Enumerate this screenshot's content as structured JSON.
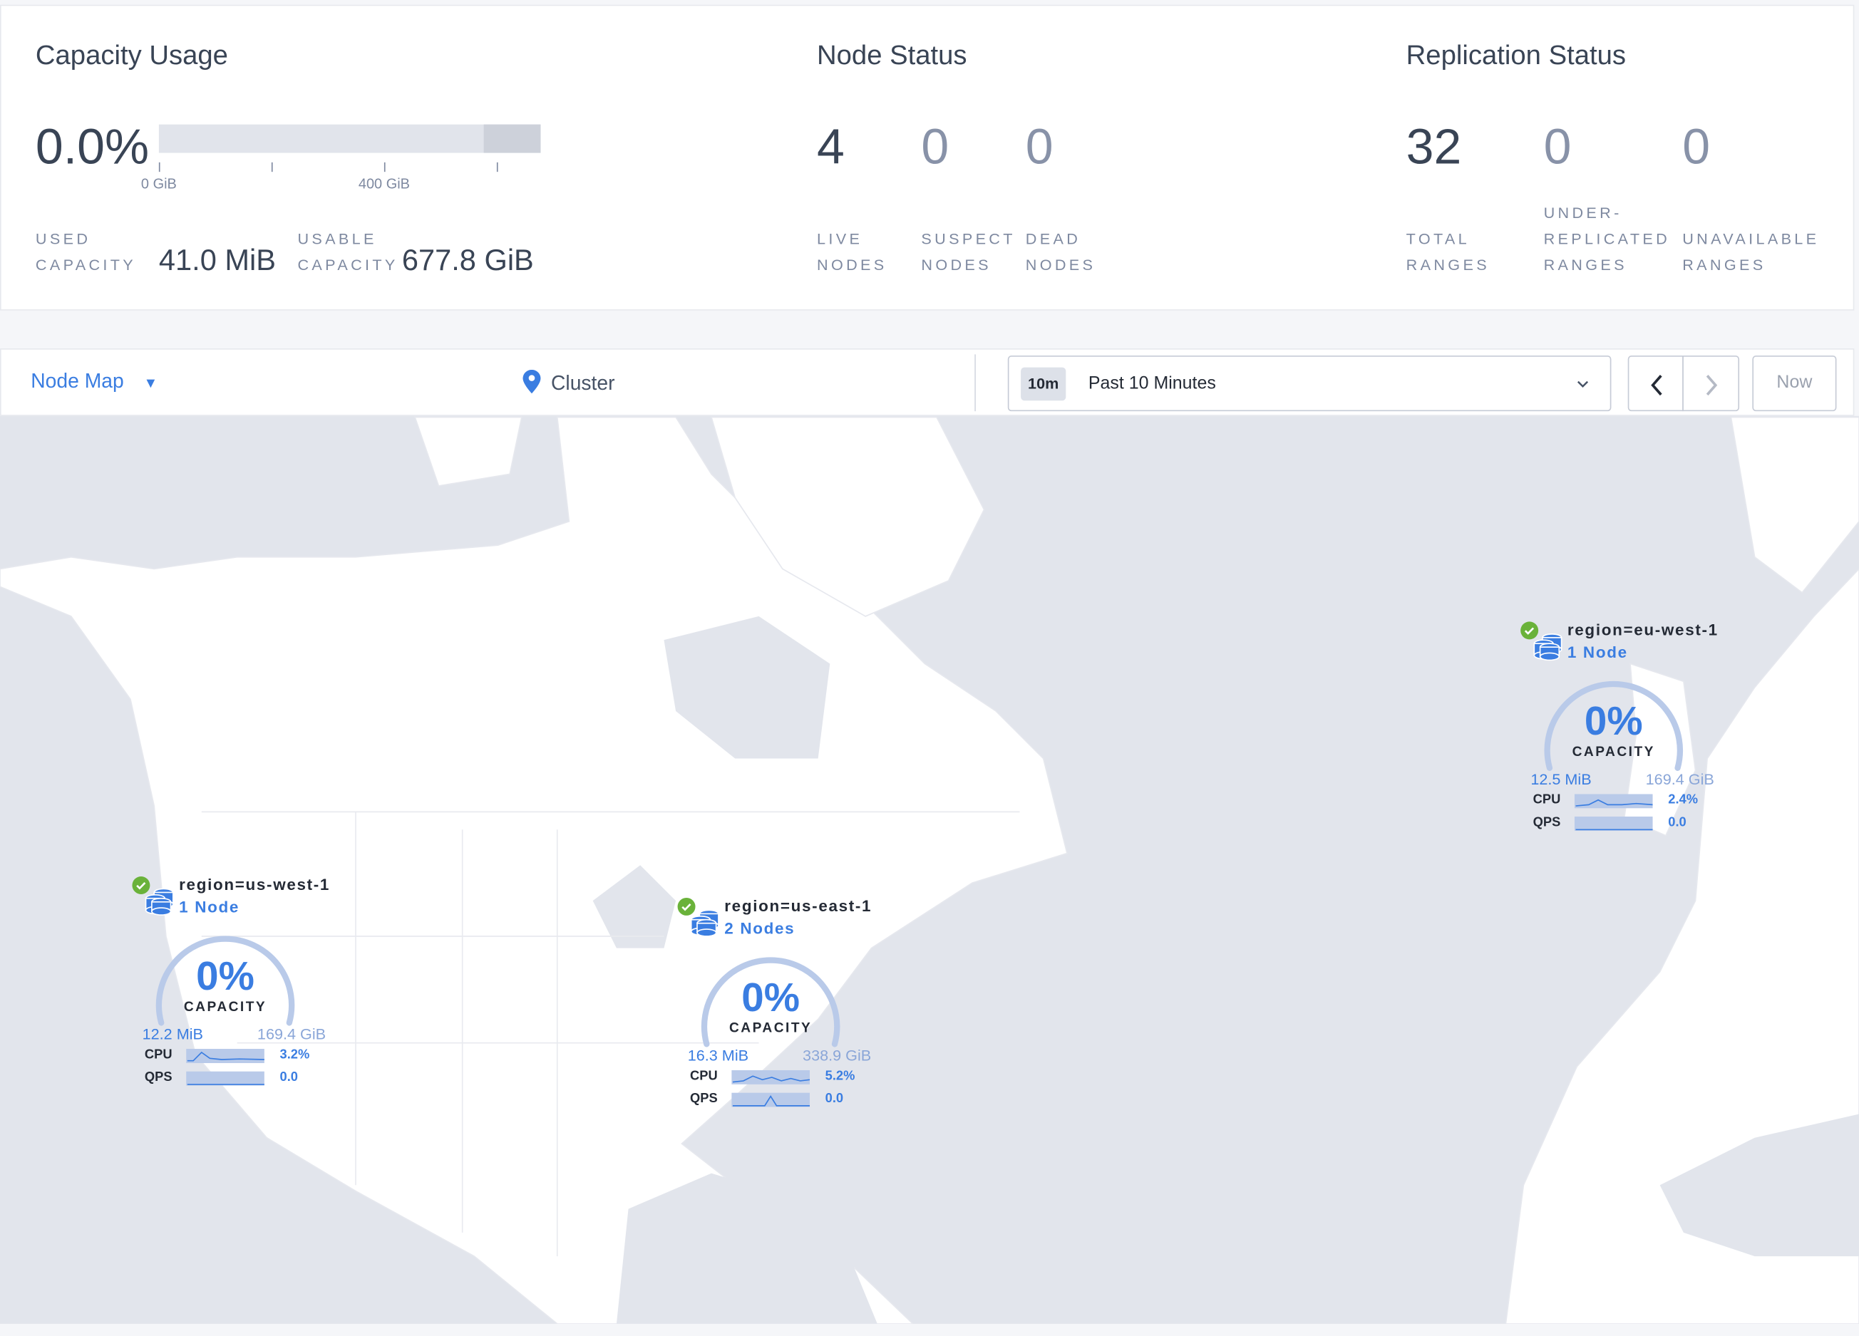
{
  "capacity": {
    "title": "Capacity Usage",
    "percent": "0.0%",
    "used_fraction": 0.0,
    "tick_labels": [
      "0 GiB",
      "400 GiB"
    ],
    "used_label_1": "USED",
    "used_label_2": "CAPACITY",
    "used_value": "41.0 MiB",
    "usable_label_1": "USABLE",
    "usable_label_2": "CAPACITY",
    "usable_value": "677.8 GiB"
  },
  "node_status": {
    "title": "Node Status",
    "stats": [
      {
        "value": "4",
        "label_1": "LIVE",
        "label_2": "NODES"
      },
      {
        "value": "0",
        "label_1": "SUSPECT",
        "label_2": "NODES"
      },
      {
        "value": "0",
        "label_1": "DEAD",
        "label_2": "NODES"
      }
    ]
  },
  "replication_status": {
    "title": "Replication Status",
    "stats": [
      {
        "value": "32",
        "label_1": "TOTAL",
        "label_2": "RANGES"
      },
      {
        "value": "0",
        "label_0": "UNDER-",
        "label_1": "REPLICATED",
        "label_2": "RANGES"
      },
      {
        "value": "0",
        "label_1": "UNAVAILABLE",
        "label_2": "RANGES"
      }
    ]
  },
  "toolbar": {
    "view_selector": "Node Map",
    "breadcrumb": "Cluster",
    "time_badge": "10m",
    "time_range": "Past 10 Minutes",
    "now_label": "Now"
  },
  "colors": {
    "accent": "#3a7de1",
    "healthy": "#6ab23a",
    "land": "#ffffff",
    "water": "#e2e5ec"
  },
  "clusters": [
    {
      "name": "region=us-west-1",
      "nodes": "1 Node",
      "capacity_percent": "0%",
      "capacity_label": "CAPACITY",
      "used": "12.2 MiB",
      "total": "169.4 GiB",
      "cpu_label": "CPU",
      "cpu": "3.2%",
      "qps_label": "QPS",
      "qps": "0.0",
      "status": "healthy"
    },
    {
      "name": "region=us-east-1",
      "nodes": "2 Nodes",
      "capacity_percent": "0%",
      "capacity_label": "CAPACITY",
      "used": "16.3 MiB",
      "total": "338.9 GiB",
      "cpu_label": "CPU",
      "cpu": "5.2%",
      "qps_label": "QPS",
      "qps": "0.0",
      "status": "healthy"
    },
    {
      "name": "region=eu-west-1",
      "nodes": "1 Node",
      "capacity_percent": "0%",
      "capacity_label": "CAPACITY",
      "used": "12.5 MiB",
      "total": "169.4 GiB",
      "cpu_label": "CPU",
      "cpu": "2.4%",
      "qps_label": "QPS",
      "qps": "0.0",
      "status": "healthy"
    }
  ]
}
